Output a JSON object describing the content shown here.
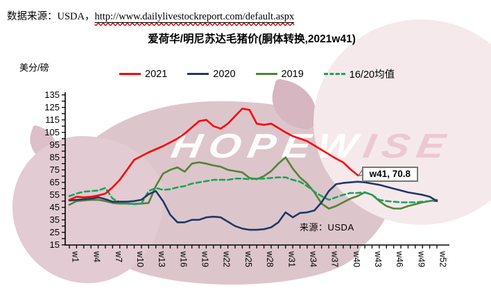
{
  "header": {
    "source_prefix": "数据来源：USDA，",
    "source_url": "http://www.dailylivestockreport.com/default.aspx"
  },
  "title": "爱荷华/明尼苏达毛猪价(胴体转换,2021w41)",
  "y_axis_unit": "美分/磅",
  "legend": [
    {
      "label": "2021",
      "color": "#ff0000",
      "style": "solid"
    },
    {
      "label": "2020",
      "color": "#1f3864",
      "style": "solid"
    },
    {
      "label": "2019",
      "color": "#548235",
      "style": "solid"
    },
    {
      "label": "16/20均值",
      "color": "#19a35c",
      "style": "dashed"
    }
  ],
  "inner_source": "来源：USDA",
  "watermark": {
    "left": "HOPEW",
    "right": "ISE"
  },
  "callout": {
    "label": "w41, 70.8"
  },
  "chart_data": {
    "type": "line",
    "title": "爱荷华/明尼苏达毛猪价(胴体转换,2021w41)",
    "ylabel": "美分/磅",
    "ylim": [
      15,
      135
    ],
    "ytick_step": 10,
    "x_weeks": 52,
    "xtick_labels": [
      "w1",
      "w4",
      "w7",
      "w10",
      "w13",
      "w16",
      "w19",
      "w22",
      "w25",
      "w28",
      "w31",
      "w34",
      "w37",
      "w40",
      "w43",
      "w46",
      "w49",
      "w52"
    ],
    "legend_position": "top",
    "grid": false,
    "annotation": {
      "week": 41,
      "value": 70.8,
      "label": "w41, 70.8"
    },
    "series": [
      {
        "name": "2019",
        "color": "#548235",
        "style": "solid",
        "start_week": 1,
        "values": [
          47,
          50,
          50.5,
          51,
          51,
          50,
          48.5,
          48,
          48,
          47.8,
          48,
          48.5,
          62,
          72,
          75,
          77,
          73.5,
          80,
          81,
          80,
          78.5,
          77.5,
          75,
          74,
          73,
          68.5,
          67.5,
          70,
          74,
          80,
          85,
          76,
          69,
          64,
          57,
          48,
          44,
          46,
          49,
          52,
          54,
          57,
          55,
          50,
          46,
          44,
          44,
          46,
          47.5,
          49,
          50,
          51
        ]
      },
      {
        "name": "16/20均值",
        "color": "#19a35c",
        "style": "dashed",
        "start_week": 1,
        "values": [
          54,
          56,
          57.5,
          58,
          58.5,
          60.5,
          52,
          49,
          48,
          47.5,
          48,
          58,
          60.5,
          59,
          59.5,
          61,
          62,
          64,
          65,
          66,
          67,
          67,
          67,
          68,
          68,
          67.5,
          68,
          68,
          68.5,
          69,
          69,
          67,
          65.5,
          62,
          57.5,
          54,
          51,
          53,
          55,
          56.5,
          56.5,
          57,
          55,
          51,
          50,
          49.5,
          49,
          49,
          49,
          49.5,
          50,
          50
        ]
      },
      {
        "name": "2020",
        "color": "#1f3864",
        "style": "solid",
        "start_week": 1,
        "values": [
          50.5,
          51,
          51.5,
          52,
          53,
          51.5,
          49.5,
          49.5,
          49.5,
          50,
          51,
          55.5,
          58,
          50,
          39,
          33,
          33,
          35,
          35,
          37,
          37.5,
          37,
          33.5,
          30,
          28,
          27,
          27,
          27.5,
          29,
          33,
          41,
          37,
          40.5,
          41,
          42.5,
          49,
          58,
          63.5,
          64.5,
          65,
          65.5,
          65,
          64,
          63,
          61.5,
          60,
          58.5,
          57,
          56,
          55,
          53.5,
          50
        ]
      },
      {
        "name": "2021",
        "color": "#ff0000",
        "style": "solid",
        "start_week": 1,
        "values": [
          51,
          53.5,
          53,
          53.5,
          54.5,
          56,
          61,
          67,
          75,
          83,
          86,
          89,
          91.5,
          94,
          97,
          100,
          104,
          109,
          114,
          115,
          110,
          108,
          112,
          118,
          124,
          123,
          112,
          111,
          112,
          108.5,
          105,
          102,
          100,
          98,
          94.5,
          91,
          87.5,
          84,
          81,
          75.5,
          70.8
        ]
      }
    ]
  }
}
